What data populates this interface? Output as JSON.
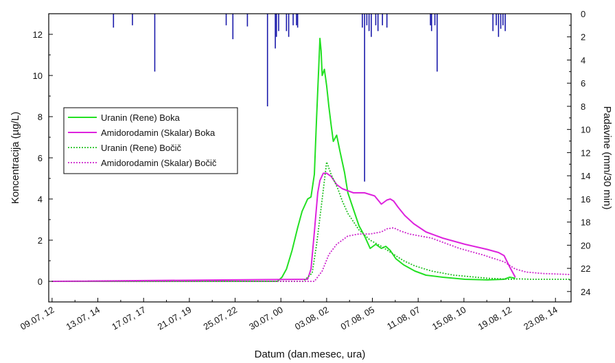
{
  "chart_data": {
    "type": "line",
    "title": "",
    "xlabel": "Datum (dan.mesec, ura)",
    "ylabel": "Koncentracija (µg/L)",
    "y2label": "Padavine (mm/30 min)",
    "x_tick_labels": [
      "09.07, 12",
      "13.07, 14",
      "17.07, 17",
      "21.07, 19",
      "25.07, 22",
      "30.07, 00",
      "03.08, 02",
      "07.08, 05",
      "11.08, 07",
      "15.08, 10",
      "19.08, 12",
      "23.08, 14"
    ],
    "x_tick_days": [
      0,
      4.1,
      8.2,
      12.3,
      16.4,
      20.5,
      24.6,
      28.7,
      32.8,
      36.9,
      41.0,
      45.1
    ],
    "x_unit_note": "x values are days after 09.07, 12",
    "xlim": [
      -0.3,
      46.5
    ],
    "ylim": [
      -1,
      13
    ],
    "yticks": [
      0,
      2,
      4,
      6,
      8,
      10,
      12
    ],
    "y2lim": [
      0,
      24.9
    ],
    "y2ticks": [
      0,
      2,
      4,
      6,
      8,
      10,
      12,
      14,
      16,
      18,
      20,
      22,
      24
    ],
    "y2_inverted": true,
    "legend_position": "upper-left",
    "series": [
      {
        "name": "Uranin (Rene) Boka",
        "color": "#22e022",
        "style": "solid",
        "x": [
          0,
          18,
          20.2,
          20.6,
          21.0,
          21.5,
          22.0,
          22.4,
          22.9,
          23.2,
          23.5,
          23.7,
          23.9,
          24.0,
          24.1,
          24.2,
          24.4,
          24.6,
          24.8,
          25.0,
          25.2,
          25.5,
          25.8,
          26.2,
          26.5,
          27.0,
          27.5,
          28.0,
          28.5,
          29.0,
          29.5,
          29.9,
          30.3,
          30.8,
          31.5,
          32.5,
          33.5,
          35.0,
          37.0,
          39.0,
          40.5,
          41.0,
          41.5
        ],
        "y": [
          0,
          0,
          0,
          0.2,
          0.6,
          1.5,
          2.6,
          3.4,
          4.0,
          4.1,
          5.2,
          8.0,
          10.5,
          11.8,
          11.2,
          10.0,
          10.3,
          9.5,
          8.5,
          7.6,
          6.8,
          7.1,
          6.3,
          5.3,
          4.3,
          3.5,
          2.7,
          2.2,
          1.6,
          1.8,
          1.6,
          1.7,
          1.5,
          1.1,
          0.8,
          0.5,
          0.3,
          0.2,
          0.1,
          0.07,
          0.1,
          0.2,
          0.15
        ]
      },
      {
        "name": "Amidorodamin (Skalar) Boka",
        "color": "#dd22dd",
        "style": "solid",
        "x": [
          0,
          22.9,
          23.2,
          23.5,
          23.8,
          24.0,
          24.3,
          24.6,
          25.0,
          25.5,
          26.0,
          26.5,
          27.0,
          28.0,
          28.9,
          29.5,
          30.0,
          30.3,
          30.6,
          31.0,
          31.6,
          32.4,
          33.5,
          35.0,
          37.0,
          39.0,
          40.0,
          40.5,
          41.0,
          41.5
        ],
        "y": [
          0,
          0.1,
          0.6,
          2.4,
          4.3,
          4.9,
          5.25,
          5.25,
          5.1,
          4.7,
          4.5,
          4.4,
          4.3,
          4.3,
          4.15,
          3.75,
          3.95,
          4.0,
          3.9,
          3.6,
          3.2,
          2.8,
          2.4,
          2.1,
          1.8,
          1.55,
          1.4,
          1.25,
          0.7,
          0.2
        ]
      },
      {
        "name": "Uranin (Rene) Bočič",
        "color": "#22c022",
        "style": "dotted",
        "x": [
          0,
          22.5,
          23.3,
          23.7,
          24.2,
          24.6,
          25.0,
          25.6,
          26.0,
          26.5,
          27.5,
          28.5,
          29.5,
          30.5,
          31.5,
          32.5,
          34.0,
          36.0,
          39.0,
          41.0,
          41.8,
          43.0,
          46.5
        ],
        "y": [
          0,
          0,
          0.4,
          1.8,
          4.0,
          5.8,
          5.2,
          4.5,
          3.9,
          3.3,
          2.5,
          2.0,
          1.7,
          1.35,
          1.0,
          0.75,
          0.5,
          0.3,
          0.15,
          0.1,
          0.12,
          0.1,
          0.1
        ]
      },
      {
        "name": "Amidorodamin (Skalar) Bočič",
        "color": "#cc22cc",
        "style": "dotted",
        "x": [
          0,
          23.5,
          24.2,
          24.8,
          25.5,
          26.5,
          27.5,
          28.5,
          29.5,
          30.0,
          30.6,
          31.2,
          32.0,
          33.0,
          34.0,
          35.0,
          36.5,
          38.5,
          40.5,
          41.5,
          42.5,
          44.0,
          46.5
        ],
        "y": [
          0,
          0,
          0.5,
          1.3,
          1.8,
          2.2,
          2.3,
          2.3,
          2.4,
          2.55,
          2.6,
          2.45,
          2.3,
          2.2,
          2.1,
          1.9,
          1.6,
          1.3,
          0.95,
          0.6,
          0.45,
          0.38,
          0.33
        ]
      },
      {
        "name": "",
        "axis": "right",
        "color": "#1a1aaa",
        "style": "bars",
        "x": [
          5.5,
          7.2,
          9.2,
          15.6,
          16.2,
          17.5,
          19.3,
          20.0,
          20.1,
          20.3,
          21.0,
          21.2,
          21.6,
          21.9,
          22.0,
          27.8,
          28.0,
          28.2,
          28.4,
          28.6,
          29.0,
          29.2,
          29.6,
          30.0,
          33.9,
          34.0,
          34.3,
          34.5,
          39.5,
          39.8,
          40.0,
          40.2,
          40.4,
          40.6
        ],
        "y": [
          1.2,
          1.0,
          5.0,
          1.0,
          2.2,
          1.1,
          8.0,
          3.0,
          2.0,
          1.5,
          1.5,
          2.0,
          1.0,
          1.0,
          1.2,
          1.2,
          14.5,
          1.0,
          1.5,
          2.0,
          1.0,
          1.5,
          1.0,
          1.2,
          1.0,
          1.5,
          1.0,
          5.0,
          1.5,
          1.0,
          2.0,
          1.3,
          1.0,
          1.5
        ]
      }
    ]
  }
}
